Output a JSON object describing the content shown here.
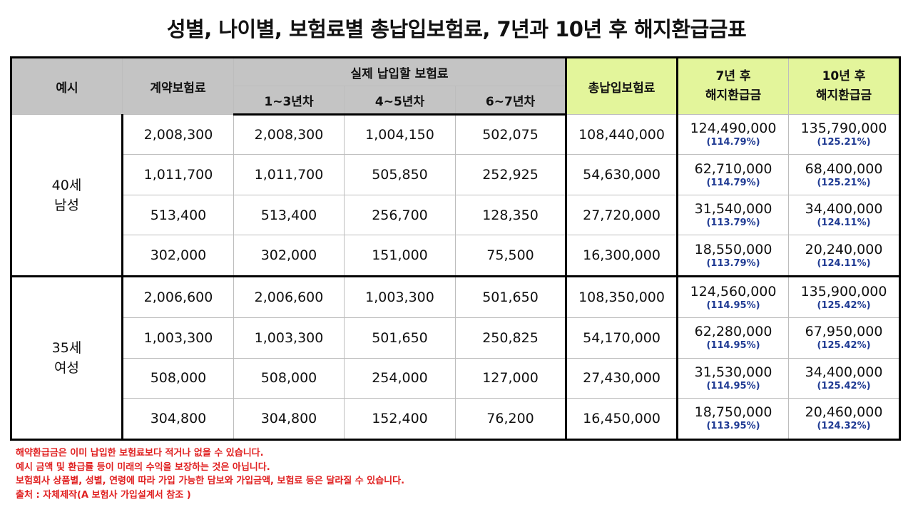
{
  "title": "성별, 나이별, 보험료별 총납입보험료, 7년과 10년 후 해지환급금표",
  "headers": {
    "example": "예시",
    "contract_premium": "계약보험료",
    "actual_premium": "실제 납입할 보험료",
    "y1_3": "1~3년차",
    "y4_5": "4~5년차",
    "y6_7": "6~7년차",
    "total_paid": "총납입보험료",
    "refund7_l1": "7년 후",
    "refund7_l2": "해지환급금",
    "refund10_l1": "10년 후",
    "refund10_l2": "해지환급금"
  },
  "groups": [
    {
      "label_l1": "40세",
      "label_l2": "남성",
      "rows": [
        {
          "contract": "2,008,300",
          "y1_3": "2,008,300",
          "y4_5": "1,004,150",
          "y6_7": "502,075",
          "total": "108,440,000",
          "r7": "124,490,000",
          "r7_pct": "(114.79%)",
          "r10": "135,790,000",
          "r10_pct": "(125.21%)"
        },
        {
          "contract": "1,011,700",
          "y1_3": "1,011,700",
          "y4_5": "505,850",
          "y6_7": "252,925",
          "total": "54,630,000",
          "r7": "62,710,000",
          "r7_pct": "(114.79%)",
          "r10": "68,400,000",
          "r10_pct": "(125.21%)"
        },
        {
          "contract": "513,400",
          "y1_3": "513,400",
          "y4_5": "256,700",
          "y6_7": "128,350",
          "total": "27,720,000",
          "r7": "31,540,000",
          "r7_pct": "(113.79%)",
          "r10": "34,400,000",
          "r10_pct": "(124.11%)"
        },
        {
          "contract": "302,000",
          "y1_3": "302,000",
          "y4_5": "151,000",
          "y6_7": "75,500",
          "total": "16,300,000",
          "r7": "18,550,000",
          "r7_pct": "(113.79%)",
          "r10": "20,240,000",
          "r10_pct": "(124.11%)"
        }
      ]
    },
    {
      "label_l1": "35세",
      "label_l2": "여성",
      "rows": [
        {
          "contract": "2,006,600",
          "y1_3": "2,006,600",
          "y4_5": "1,003,300",
          "y6_7": "501,650",
          "total": "108,350,000",
          "r7": "124,560,000",
          "r7_pct": "(114.95%)",
          "r10": "135,900,000",
          "r10_pct": "(125.42%)"
        },
        {
          "contract": "1,003,300",
          "y1_3": "1,003,300",
          "y4_5": "501,650",
          "y6_7": "250,825",
          "total": "54,170,000",
          "r7": "62,280,000",
          "r7_pct": "(114.95%)",
          "r10": "67,950,000",
          "r10_pct": "(125.42%)"
        },
        {
          "contract": "508,000",
          "y1_3": "508,000",
          "y4_5": "254,000",
          "y6_7": "127,000",
          "total": "27,430,000",
          "r7": "31,530,000",
          "r7_pct": "(114.95%)",
          "r10": "34,400,000",
          "r10_pct": "(125.42%)"
        },
        {
          "contract": "304,800",
          "y1_3": "304,800",
          "y4_5": "152,400",
          "y6_7": "76,200",
          "total": "16,450,000",
          "r7": "18,750,000",
          "r7_pct": "(113.95%)",
          "r10": "20,460,000",
          "r10_pct": "(124.32%)"
        }
      ]
    }
  ],
  "notes": [
    "해약환급금은 이미 납입한 보험료보다 적거나 없을 수 있습니다.",
    "예시 금액 및 환급률 등이 미래의 수익을 보장하는 것은 아닙니다.",
    "보험회사 상품별, 성별, 연령에 따라 가입 가능한 담보와 가입금액, 보험료 등은 달라질 수 있습니다.",
    "출처 : 자체제작(A 보험사 가입설계서 참조 )"
  ],
  "colors": {
    "header_gray": "#c4c4c4",
    "header_green": "#e3f59b",
    "percent_text": "#1f3a93",
    "note_text": "#e02020"
  }
}
